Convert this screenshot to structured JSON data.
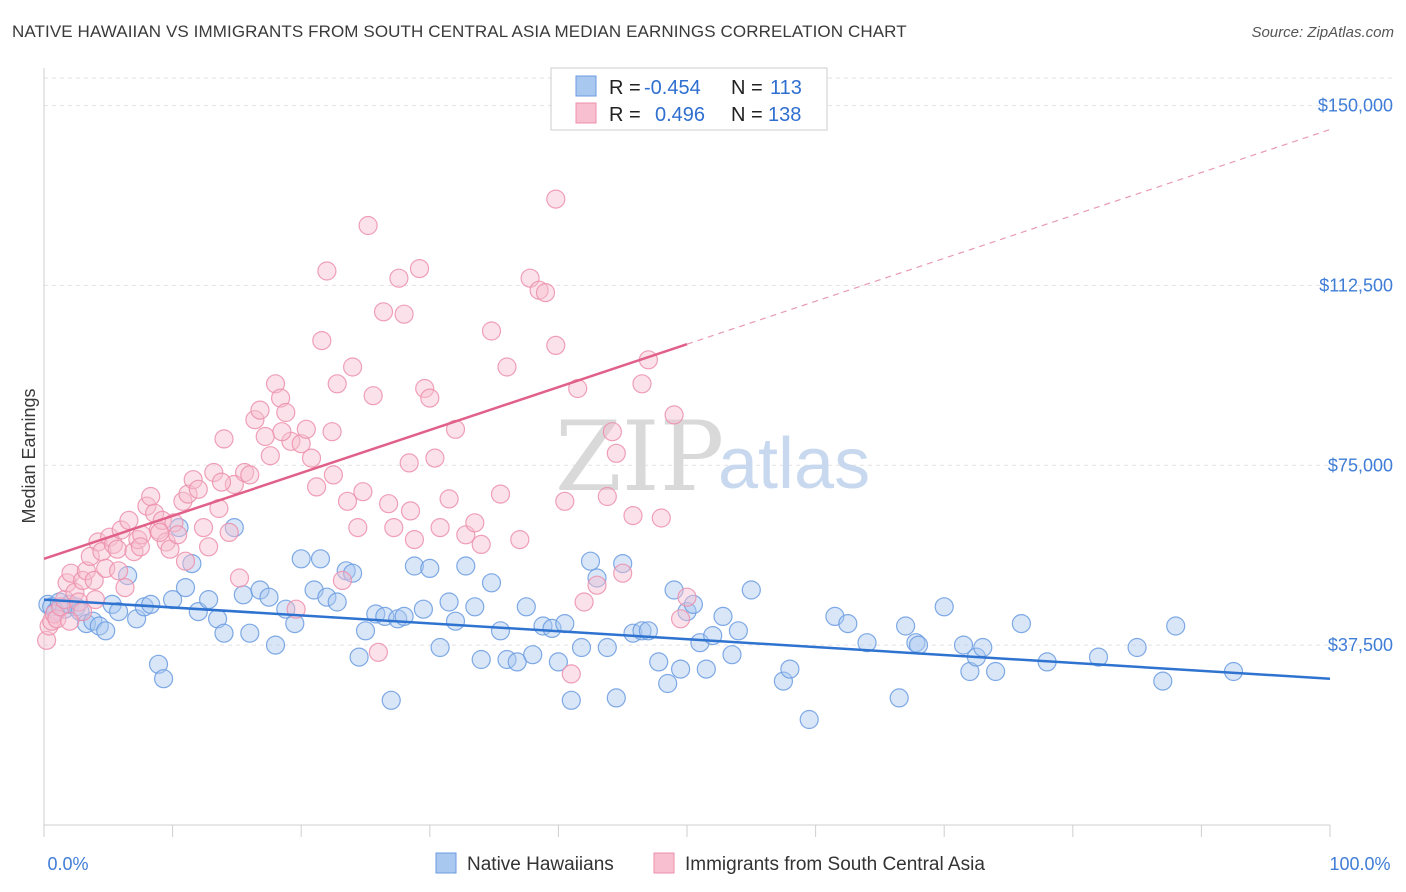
{
  "header": {
    "title": "NATIVE HAWAIIAN VS IMMIGRANTS FROM SOUTH CENTRAL ASIA MEDIAN EARNINGS CORRELATION CHART",
    "source": "Source: ZipAtlas.com"
  },
  "watermark": {
    "zip": "ZIP",
    "atlas": "atlas"
  },
  "legend": {
    "r_label": "R =",
    "n_label": "N =",
    "rows": [
      {
        "r": "-0.454",
        "n": "113",
        "color": "#a9c8f0",
        "stroke": "#6a9be0"
      },
      {
        "r": "0.496",
        "n": "138",
        "color": "#f7bfd0",
        "stroke": "#ec8fab"
      }
    ]
  },
  "bottom_legend": [
    {
      "label": "Native Hawaiians",
      "color": "#a9c8f0",
      "stroke": "#6a9be0"
    },
    {
      "label": "Immigrants from South Central Asia",
      "color": "#f7bfd0",
      "stroke": "#ec8fab"
    }
  ],
  "chart_data": {
    "type": "scatter",
    "title": "NATIVE HAWAIIAN VS IMMIGRANTS FROM SOUTH CENTRAL ASIA MEDIAN EARNINGS CORRELATION CHART",
    "xlabel": "",
    "ylabel": "Median Earnings",
    "xlim": [
      0,
      100
    ],
    "ylim": [
      0,
      157000
    ],
    "x_tick_labels": [
      "0.0%",
      "100.0%"
    ],
    "y_ticks": [
      37500,
      75000,
      112500,
      150000
    ],
    "y_tick_labels": [
      "$37,500",
      "$75,000",
      "$112,500",
      "$150,000"
    ],
    "grid": true,
    "legend_position": "top-center",
    "series": [
      {
        "name": "Native Hawaiians",
        "color": "#6a9be0",
        "fill": "#a9c8f0",
        "trend": {
          "x0": 0,
          "y0": 47000,
          "x1": 100,
          "y1": 30500,
          "dashed_from": null
        },
        "points": [
          [
            0.3,
            46000
          ],
          [
            0.6,
            45500
          ],
          [
            0.9,
            44500
          ],
          [
            1.2,
            46500
          ],
          [
            1.6,
            45000
          ],
          [
            2.0,
            46000
          ],
          [
            2.5,
            45500
          ],
          [
            2.8,
            44500
          ],
          [
            3.3,
            42000
          ],
          [
            3.8,
            42500
          ],
          [
            4.3,
            41500
          ],
          [
            4.8,
            40500
          ],
          [
            5.3,
            46000
          ],
          [
            5.8,
            44500
          ],
          [
            6.5,
            52000
          ],
          [
            7.2,
            43000
          ],
          [
            7.8,
            45500
          ],
          [
            8.3,
            46000
          ],
          [
            8.9,
            33500
          ],
          [
            9.3,
            30500
          ],
          [
            10.0,
            47000
          ],
          [
            10.5,
            62000
          ],
          [
            11.0,
            49500
          ],
          [
            11.5,
            54500
          ],
          [
            12.0,
            44500
          ],
          [
            12.8,
            47000
          ],
          [
            13.5,
            43000
          ],
          [
            14.0,
            40000
          ],
          [
            14.8,
            62000
          ],
          [
            15.5,
            48000
          ],
          [
            16.0,
            40000
          ],
          [
            16.8,
            49000
          ],
          [
            17.5,
            47500
          ],
          [
            18.0,
            37500
          ],
          [
            18.8,
            45000
          ],
          [
            19.5,
            42000
          ],
          [
            20.0,
            55500
          ],
          [
            21.0,
            49000
          ],
          [
            21.5,
            55500
          ],
          [
            22.0,
            47500
          ],
          [
            22.8,
            46500
          ],
          [
            23.5,
            53000
          ],
          [
            24.0,
            52500
          ],
          [
            24.5,
            35000
          ],
          [
            25.0,
            40500
          ],
          [
            25.8,
            44000
          ],
          [
            26.5,
            43500
          ],
          [
            27.0,
            26000
          ],
          [
            27.5,
            43000
          ],
          [
            28.0,
            43500
          ],
          [
            28.8,
            54000
          ],
          [
            29.5,
            45000
          ],
          [
            30.0,
            53500
          ],
          [
            30.8,
            37000
          ],
          [
            31.5,
            46500
          ],
          [
            32.0,
            42500
          ],
          [
            32.8,
            54000
          ],
          [
            33.5,
            45500
          ],
          [
            34.0,
            34500
          ],
          [
            34.8,
            50500
          ],
          [
            35.5,
            40500
          ],
          [
            36.0,
            34500
          ],
          [
            36.8,
            34000
          ],
          [
            37.5,
            45500
          ],
          [
            38.0,
            35500
          ],
          [
            38.8,
            41500
          ],
          [
            39.5,
            41000
          ],
          [
            40.0,
            34000
          ],
          [
            40.5,
            42000
          ],
          [
            41.0,
            26000
          ],
          [
            41.8,
            37000
          ],
          [
            42.5,
            55000
          ],
          [
            43.0,
            51500
          ],
          [
            43.8,
            37000
          ],
          [
            44.5,
            26500
          ],
          [
            45.0,
            54500
          ],
          [
            45.8,
            40000
          ],
          [
            46.5,
            40500
          ],
          [
            47.0,
            40500
          ],
          [
            47.8,
            34000
          ],
          [
            48.5,
            29500
          ],
          [
            49.0,
            49000
          ],
          [
            49.5,
            32500
          ],
          [
            50.0,
            44500
          ],
          [
            50.5,
            46000
          ],
          [
            51.0,
            38000
          ],
          [
            51.5,
            32500
          ],
          [
            52.0,
            39500
          ],
          [
            52.8,
            43500
          ],
          [
            53.5,
            35500
          ],
          [
            54.0,
            40500
          ],
          [
            55.0,
            49000
          ],
          [
            57.5,
            30000
          ],
          [
            58.0,
            32500
          ],
          [
            59.5,
            22000
          ],
          [
            61.5,
            43500
          ],
          [
            62.5,
            42000
          ],
          [
            64.0,
            38000
          ],
          [
            66.5,
            26500
          ],
          [
            67.0,
            41500
          ],
          [
            67.8,
            38000
          ],
          [
            68.0,
            37500
          ],
          [
            70.0,
            45500
          ],
          [
            71.5,
            37500
          ],
          [
            72.0,
            32000
          ],
          [
            72.5,
            35000
          ],
          [
            73.0,
            37000
          ],
          [
            74.0,
            32000
          ],
          [
            76.0,
            42000
          ],
          [
            78.0,
            34000
          ],
          [
            82.0,
            35000
          ],
          [
            85.0,
            37000
          ],
          [
            87.0,
            30000
          ],
          [
            88.0,
            41500
          ],
          [
            92.5,
            32000
          ]
        ]
      },
      {
        "name": "Immigrants from South Central Asia",
        "color": "#ec8fab",
        "fill": "#f7bfd0",
        "trend": {
          "x0": 0,
          "y0": 55500,
          "x1": 100,
          "y1": 145000,
          "solid_until": 50
        },
        "points": [
          [
            0.2,
            38500
          ],
          [
            0.4,
            41500
          ],
          [
            0.6,
            42500
          ],
          [
            0.8,
            44000
          ],
          [
            1.0,
            43000
          ],
          [
            1.3,
            45500
          ],
          [
            1.6,
            47000
          ],
          [
            1.8,
            50500
          ],
          [
            2.1,
            52500
          ],
          [
            2.4,
            48500
          ],
          [
            2.7,
            46500
          ],
          [
            3.0,
            51000
          ],
          [
            3.3,
            53000
          ],
          [
            3.6,
            56000
          ],
          [
            3.9,
            51000
          ],
          [
            4.2,
            59000
          ],
          [
            4.5,
            57000
          ],
          [
            4.8,
            53500
          ],
          [
            5.1,
            60000
          ],
          [
            5.4,
            58500
          ],
          [
            5.7,
            57500
          ],
          [
            6.0,
            61500
          ],
          [
            6.3,
            49500
          ],
          [
            6.6,
            63500
          ],
          [
            7.0,
            57000
          ],
          [
            7.3,
            59500
          ],
          [
            7.6,
            60500
          ],
          [
            8.0,
            66500
          ],
          [
            8.3,
            68500
          ],
          [
            8.6,
            65000
          ],
          [
            8.9,
            61500
          ],
          [
            9.2,
            63500
          ],
          [
            9.5,
            59000
          ],
          [
            9.8,
            57500
          ],
          [
            10.1,
            63000
          ],
          [
            10.4,
            60500
          ],
          [
            10.8,
            67500
          ],
          [
            11.2,
            69000
          ],
          [
            11.6,
            72000
          ],
          [
            12.0,
            70000
          ],
          [
            12.4,
            62000
          ],
          [
            12.8,
            58000
          ],
          [
            13.2,
            73500
          ],
          [
            13.6,
            66000
          ],
          [
            14.0,
            80500
          ],
          [
            14.4,
            61000
          ],
          [
            14.8,
            71000
          ],
          [
            15.2,
            51500
          ],
          [
            15.6,
            73500
          ],
          [
            16.0,
            73000
          ],
          [
            16.4,
            84500
          ],
          [
            16.8,
            86500
          ],
          [
            17.2,
            81000
          ],
          [
            17.6,
            77000
          ],
          [
            18.0,
            92000
          ],
          [
            18.4,
            89000
          ],
          [
            18.8,
            86000
          ],
          [
            19.2,
            80000
          ],
          [
            19.6,
            45000
          ],
          [
            20.0,
            79500
          ],
          [
            20.4,
            82500
          ],
          [
            20.8,
            76500
          ],
          [
            21.2,
            70500
          ],
          [
            21.6,
            101000
          ],
          [
            22.0,
            115500
          ],
          [
            22.4,
            82000
          ],
          [
            22.8,
            92000
          ],
          [
            23.2,
            51000
          ],
          [
            23.6,
            67500
          ],
          [
            24.0,
            95500
          ],
          [
            24.4,
            62000
          ],
          [
            24.8,
            69500
          ],
          [
            25.2,
            125000
          ],
          [
            25.6,
            89500
          ],
          [
            26.0,
            36000
          ],
          [
            26.4,
            107000
          ],
          [
            26.8,
            67000
          ],
          [
            27.2,
            62000
          ],
          [
            27.6,
            114000
          ],
          [
            28.0,
            106500
          ],
          [
            28.4,
            75500
          ],
          [
            28.8,
            59500
          ],
          [
            29.2,
            116000
          ],
          [
            29.6,
            91000
          ],
          [
            30.0,
            89000
          ],
          [
            30.4,
            76500
          ],
          [
            30.8,
            62000
          ],
          [
            31.5,
            68000
          ],
          [
            32.0,
            82500
          ],
          [
            32.8,
            60500
          ],
          [
            33.5,
            63000
          ],
          [
            34.0,
            58500
          ],
          [
            34.8,
            103000
          ],
          [
            35.5,
            69000
          ],
          [
            36.0,
            95500
          ],
          [
            37.0,
            59500
          ],
          [
            37.8,
            114000
          ],
          [
            38.5,
            111500
          ],
          [
            39.0,
            111000
          ],
          [
            39.8,
            100000
          ],
          [
            40.5,
            67500
          ],
          [
            41.0,
            31500
          ],
          [
            41.5,
            91000
          ],
          [
            42.0,
            46500
          ],
          [
            43.0,
            50000
          ],
          [
            43.8,
            68500
          ],
          [
            44.2,
            82000
          ],
          [
            44.5,
            77500
          ],
          [
            45.0,
            52500
          ],
          [
            45.8,
            64500
          ],
          [
            46.5,
            92000
          ],
          [
            47.0,
            97000
          ],
          [
            48.0,
            64000
          ],
          [
            49.0,
            85500
          ],
          [
            49.5,
            43000
          ],
          [
            50.0,
            47500
          ],
          [
            39.8,
            130500
          ],
          [
            28.5,
            65500
          ],
          [
            22.5,
            73000
          ],
          [
            18.5,
            82000
          ],
          [
            13.8,
            71500
          ],
          [
            11.0,
            55000
          ],
          [
            9.0,
            61000
          ],
          [
            7.5,
            58000
          ],
          [
            5.8,
            53000
          ],
          [
            4.0,
            47000
          ],
          [
            3.0,
            44500
          ],
          [
            2.0,
            42500
          ]
        ]
      }
    ]
  }
}
